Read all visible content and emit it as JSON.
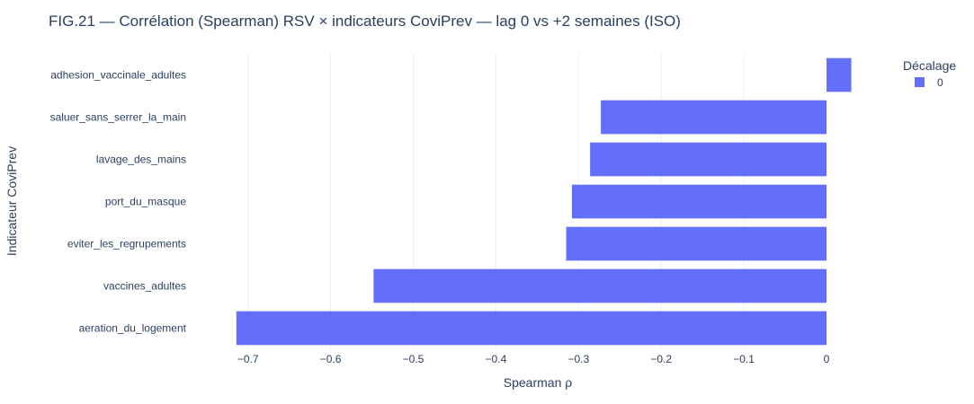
{
  "chart_data": {
    "type": "bar",
    "orientation": "horizontal",
    "title": "FIG.21 — Corrélation (Spearman) RSV × indicateurs CoviPrev — lag 0 vs +2 semaines (ISO)",
    "xlabel": "Spearman ρ",
    "ylabel": "Indicateur CoviPrev",
    "xlim": [
      -0.715,
      0.03
    ],
    "x_ticks": [
      -0.7,
      -0.6,
      -0.5,
      -0.4,
      -0.3,
      -0.2,
      -0.1,
      0
    ],
    "x_tick_labels": [
      "−0.7",
      "−0.6",
      "−0.5",
      "−0.4",
      "−0.3",
      "−0.2",
      "−0.1",
      "0"
    ],
    "categories": [
      "adhesion_vaccinale_adultes",
      "saluer_sans_serrer_la_main",
      "lavage_des_mains",
      "port_du_masque",
      "eviter_les_regrupements",
      "vaccines_adultes",
      "aeration_du_logement"
    ],
    "series": [
      {
        "name": "0",
        "color": "#636efa",
        "values": [
          0.03,
          -0.273,
          -0.286,
          -0.308,
          -0.315,
          -0.548,
          -0.714
        ]
      }
    ],
    "legend": {
      "title": "Décalage",
      "placement": "top-right"
    },
    "grid": true
  }
}
